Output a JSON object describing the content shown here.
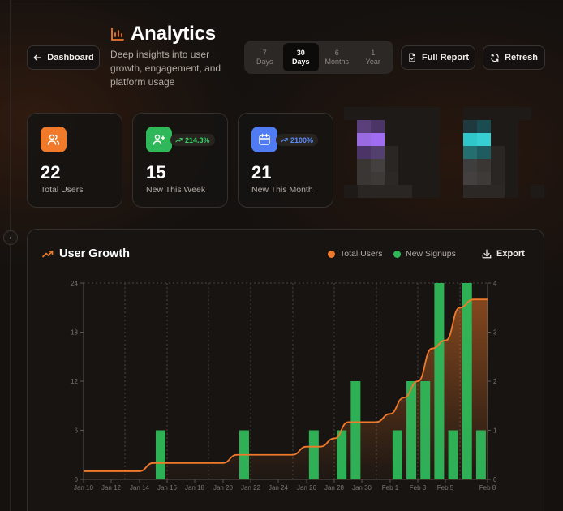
{
  "header": {
    "back_label": "Dashboard",
    "title": "Analytics",
    "subtitle": "Deep insights into user growth, engagement, and platform usage",
    "ranges": [
      {
        "top": "7",
        "bottom": "Days",
        "active": false
      },
      {
        "top": "30",
        "bottom": "Days",
        "active": true
      },
      {
        "top": "6",
        "bottom": "Months",
        "active": false
      },
      {
        "top": "1",
        "bottom": "Year",
        "active": false
      }
    ],
    "report_label": "Full Report",
    "refresh_label": "Refresh"
  },
  "stats": {
    "total": {
      "value": "22",
      "label": "Total Users",
      "color": "#f07a2a"
    },
    "week": {
      "value": "15",
      "label": "New This Week",
      "badge": "214.3%",
      "color": "#2fb85a",
      "badge_color": "#3ccf6a"
    },
    "month": {
      "value": "21",
      "label": "New This Month",
      "badge": "2100%",
      "color": "#4f7cf2",
      "badge_color": "#5b8cff"
    }
  },
  "chart_panel": {
    "title": "User Growth",
    "legend_total": "Total Users",
    "legend_new": "New Signups",
    "export_label": "Export",
    "total_color": "#f07a2a",
    "new_color": "#2fb85a"
  },
  "chart_data": {
    "type": "bar",
    "title": "User Growth",
    "x_labels": [
      "Jan 10",
      "Jan 12",
      "Jan 14",
      "Jan 16",
      "Jan 18",
      "Jan 20",
      "Jan 22",
      "Jan 24",
      "Jan 26",
      "Jan 28",
      "Jan 30",
      "Feb 1",
      "Feb 3",
      "Feb 5",
      "Feb 8"
    ],
    "y_left_ticks": [
      0,
      6,
      12,
      18,
      24
    ],
    "y_right_ticks": [
      0,
      1,
      2,
      3,
      4
    ],
    "ylim_left": [
      0,
      24
    ],
    "ylim_right": [
      0,
      4
    ],
    "series": [
      {
        "name": "New Signups",
        "axis": "right",
        "type": "bar",
        "values": [
          0,
          0,
          0,
          0,
          0,
          1,
          0,
          0,
          0,
          0,
          0,
          1,
          0,
          0,
          0,
          0,
          1,
          0,
          1,
          2,
          0,
          0,
          1,
          2,
          2,
          4,
          1,
          4,
          1,
          0
        ]
      },
      {
        "name": "Total Users",
        "axis": "left",
        "type": "line",
        "values": [
          1,
          1,
          1,
          1,
          1,
          2,
          2,
          2,
          2,
          2,
          2,
          3,
          3,
          3,
          3,
          3,
          4,
          4,
          5,
          7,
          7,
          7,
          8,
          10,
          12,
          16,
          17,
          21,
          22,
          22
        ]
      }
    ]
  }
}
